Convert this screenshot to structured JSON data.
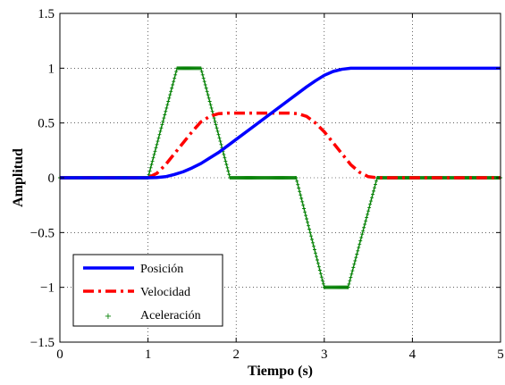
{
  "chart_data": {
    "type": "line",
    "xlabel": "Tiempo (s)",
    "ylabel": "Amplitud",
    "xlim": [
      0,
      5
    ],
    "ylim": [
      -1.5,
      1.5
    ],
    "xticks": [
      "0",
      "1",
      "2",
      "3",
      "4",
      "5"
    ],
    "yticks": [
      "1.5",
      "1",
      "0.5",
      "0",
      "−0.5",
      "−1",
      "−1.5"
    ],
    "grid": true,
    "legend_position": "bottom-left",
    "series": [
      {
        "name": "Posición",
        "color": "#0000ff",
        "style": "solid",
        "x": [
          0,
          1.0,
          1.1,
          1.2,
          1.3,
          1.4,
          1.5,
          1.6,
          1.7,
          1.8,
          1.9,
          2.0,
          2.2,
          2.4,
          2.6,
          2.8,
          2.9,
          3.0,
          3.1,
          3.2,
          3.3,
          3.4,
          3.5,
          3.6,
          4.0,
          5.0
        ],
        "y": [
          0,
          0,
          0.002,
          0.01,
          0.03,
          0.055,
          0.09,
          0.13,
          0.18,
          0.23,
          0.29,
          0.35,
          0.47,
          0.59,
          0.71,
          0.83,
          0.885,
          0.935,
          0.97,
          0.99,
          1.0,
          1.0,
          1.0,
          1.0,
          1.0,
          1.0
        ]
      },
      {
        "name": "Velocidad",
        "color": "#ff0000",
        "style": "dashdot",
        "x": [
          0,
          1.0,
          1.1,
          1.2,
          1.3,
          1.4,
          1.5,
          1.6,
          1.7,
          1.8,
          1.9,
          2.0,
          2.2,
          2.4,
          2.6,
          2.7,
          2.8,
          2.9,
          3.0,
          3.1,
          3.2,
          3.3,
          3.4,
          3.5,
          3.6,
          4.0,
          5.0
        ],
        "y": [
          0,
          0,
          0.04,
          0.12,
          0.22,
          0.32,
          0.42,
          0.51,
          0.56,
          0.585,
          0.59,
          0.59,
          0.59,
          0.59,
          0.59,
          0.585,
          0.56,
          0.5,
          0.42,
          0.32,
          0.22,
          0.12,
          0.05,
          0.01,
          0,
          0,
          0
        ]
      },
      {
        "name": "Aceleración",
        "color": "#007f00",
        "style": "plus-markers",
        "x": [
          0,
          1.0,
          1.33,
          1.6,
          1.93,
          2.68,
          3.0,
          3.27,
          3.6,
          5.0
        ],
        "y": [
          0,
          0,
          1,
          1,
          0,
          0,
          -1,
          -1,
          0,
          0
        ]
      }
    ]
  }
}
